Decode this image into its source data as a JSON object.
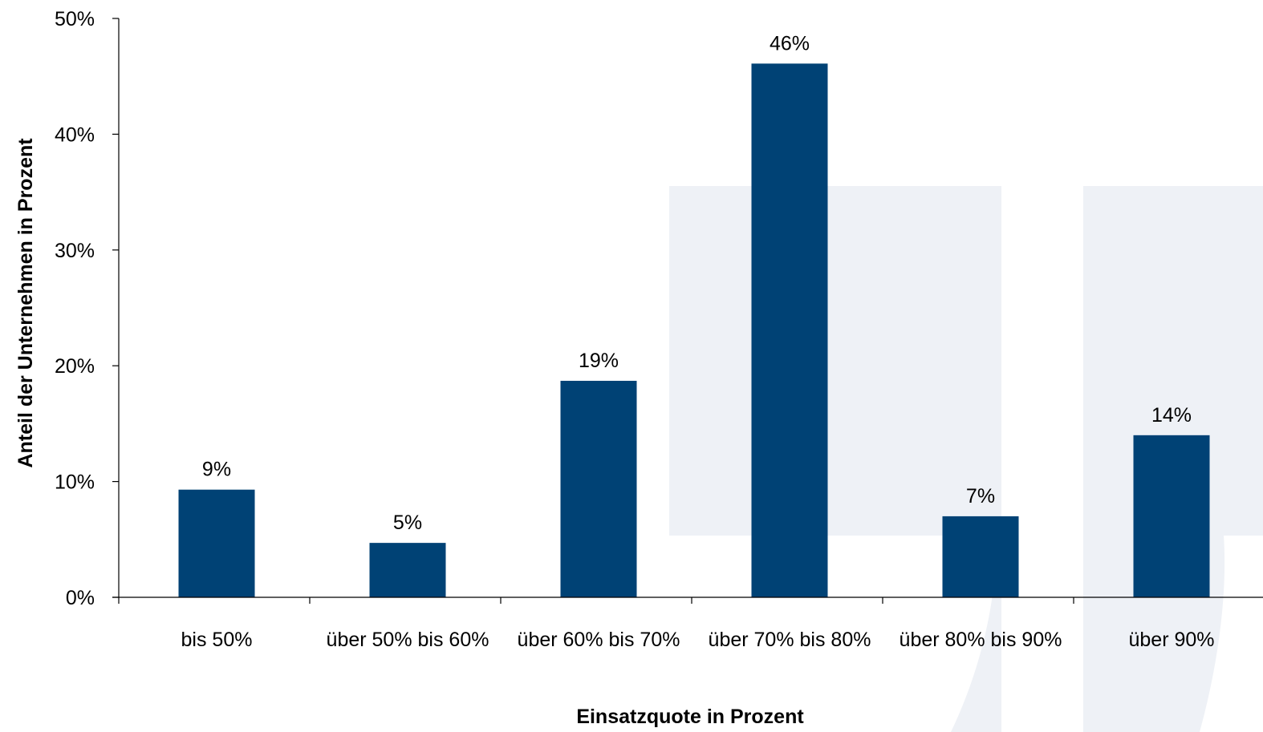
{
  "chart_data": {
    "type": "bar",
    "title": "",
    "xlabel": "Einsatzquote in Prozent",
    "ylabel": "Anteil der Unternehmen in Prozent",
    "categories": [
      "bis 50%",
      "über 50% bis 60%",
      "über 60% bis 70%",
      "über 70% bis 80%",
      "über 80% bis 90%",
      "über 90%"
    ],
    "values": [
      9.3,
      4.7,
      18.7,
      46.1,
      7.0,
      14.0
    ],
    "data_labels": [
      "9%",
      "5%",
      "19%",
      "46%",
      "7%",
      "14%"
    ],
    "ylim": [
      0,
      50
    ],
    "yticks": [
      0,
      10,
      20,
      30,
      40,
      50
    ],
    "ytick_labels": [
      "0%",
      "10%",
      "20%",
      "30%",
      "40%",
      "50%"
    ],
    "grid": false,
    "legend": "none",
    "colors": {
      "bar": "#004275",
      "axis": "#000000",
      "watermark": "#eef1f6"
    },
    "watermark": "light-blue-logo-shape"
  }
}
